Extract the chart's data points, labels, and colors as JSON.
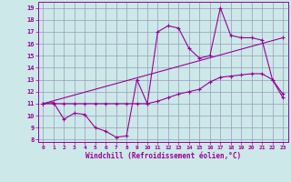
{
  "xlabel": "Windchill (Refroidissement éolien,°C)",
  "bg_color": "#cce8e8",
  "line_color": "#990099",
  "grid_color": "#9999bb",
  "xlim": [
    -0.5,
    23.5
  ],
  "ylim": [
    7.8,
    19.5
  ],
  "yticks": [
    8,
    9,
    10,
    11,
    12,
    13,
    14,
    15,
    16,
    17,
    18,
    19
  ],
  "xticks": [
    0,
    1,
    2,
    3,
    4,
    5,
    6,
    7,
    8,
    9,
    10,
    11,
    12,
    13,
    14,
    15,
    16,
    17,
    18,
    19,
    20,
    21,
    22,
    23
  ],
  "series1_x": [
    0,
    1,
    2,
    3,
    4,
    5,
    6,
    7,
    8,
    9,
    10,
    11,
    12,
    13,
    14,
    15,
    16,
    17,
    18,
    19,
    20,
    21,
    22,
    23
  ],
  "series1_y": [
    11.0,
    11.1,
    9.7,
    10.2,
    10.1,
    9.0,
    8.7,
    8.2,
    8.3,
    13.0,
    11.0,
    17.0,
    17.5,
    17.3,
    15.6,
    14.8,
    15.0,
    19.0,
    16.7,
    16.5,
    16.5,
    16.3,
    13.0,
    11.5
  ],
  "series2_x": [
    0,
    1,
    2,
    3,
    4,
    5,
    6,
    7,
    8,
    9,
    10,
    11,
    12,
    13,
    14,
    15,
    16,
    17,
    18,
    19,
    20,
    21,
    22,
    23
  ],
  "series2_y": [
    11.0,
    11.0,
    11.0,
    11.0,
    11.0,
    11.0,
    11.0,
    11.0,
    11.0,
    11.0,
    11.0,
    11.2,
    11.5,
    11.8,
    12.0,
    12.2,
    12.8,
    13.2,
    13.3,
    13.4,
    13.5,
    13.5,
    13.0,
    11.8
  ],
  "series3_x": [
    0,
    23
  ],
  "series3_y": [
    11.0,
    16.5
  ]
}
